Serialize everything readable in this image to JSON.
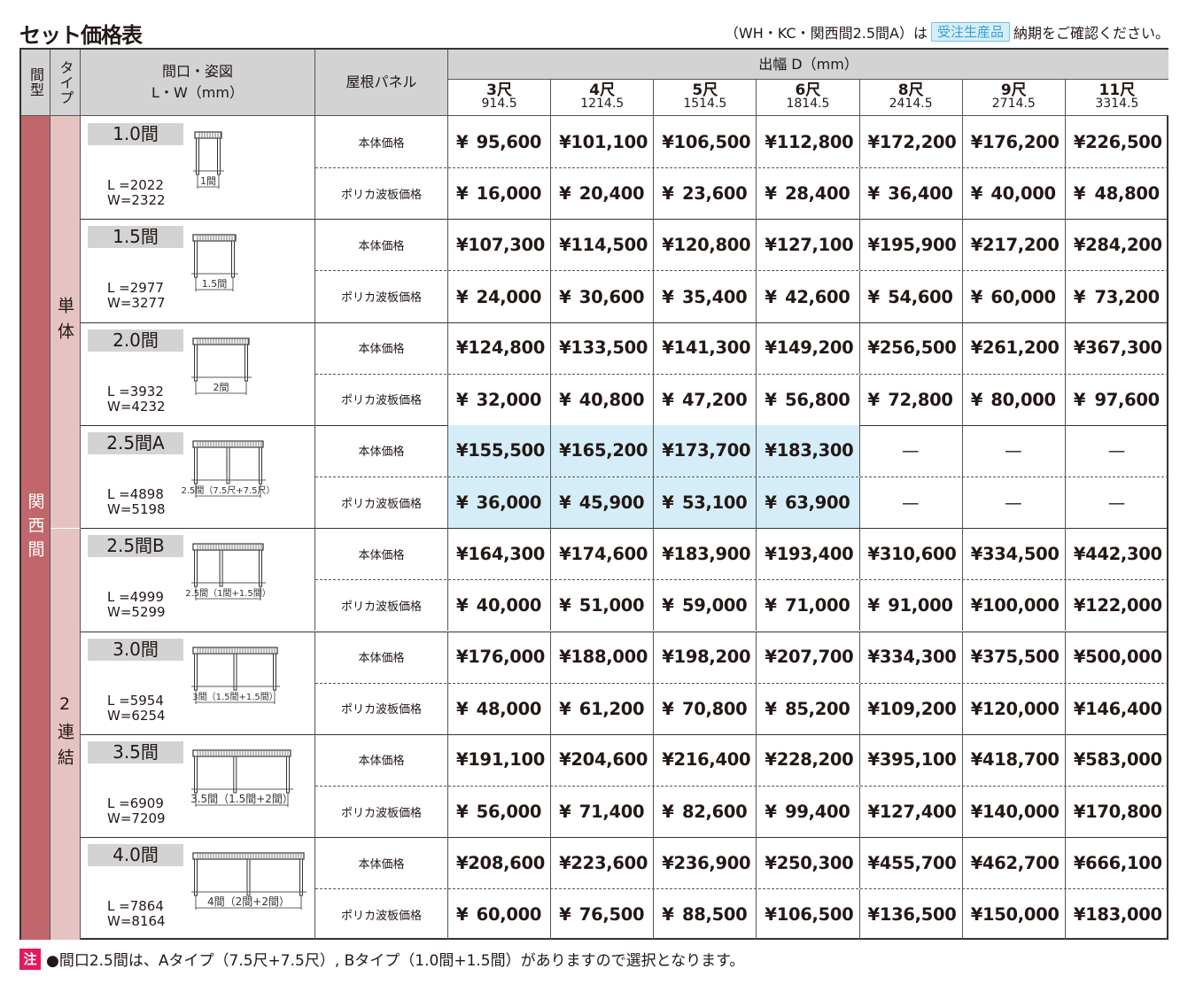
{
  "title": "セット価格表",
  "notice": {
    "prefix": "（WH・KC・関西間2.5間A）は",
    "badge": "受注生産品",
    "suffix": "納期をご確認ください。"
  },
  "colors": {
    "kansai_band": "#c1676b",
    "type_band": "#e6c3c3",
    "header_bg": "#d3d3d4",
    "highlight": "#d4edf9",
    "note_tag": "#e5195f"
  },
  "header": {
    "mawari_type": "間型",
    "type": "タイプ",
    "frontage": "間口・姿図",
    "frontage_unit": "L・W（mm）",
    "roof_panel": "屋根パネル",
    "depth": "出幅 D（mm）",
    "depth_cols": [
      {
        "shaku": "3尺",
        "mm": "914.5"
      },
      {
        "shaku": "4尺",
        "mm": "1214.5"
      },
      {
        "shaku": "5尺",
        "mm": "1514.5"
      },
      {
        "shaku": "6尺",
        "mm": "1814.5"
      },
      {
        "shaku": "8尺",
        "mm": "2414.5"
      },
      {
        "shaku": "9尺",
        "mm": "2714.5"
      },
      {
        "shaku": "11尺",
        "mm": "3314.5"
      }
    ]
  },
  "mawari_label": "関西間",
  "types": [
    {
      "label": "単体"
    },
    {
      "label": "2連結"
    }
  ],
  "currency": "¥",
  "empty_mark": "—",
  "row_labels": {
    "body": "本体価格",
    "panel": "ポリカ波板価格"
  },
  "groups": [
    {
      "size": "1.0間",
      "L": "L =2022",
      "W": "W=2322",
      "diagram": "1間",
      "type": 0,
      "body": [
        "95,600",
        "101,100",
        "106,500",
        "112,800",
        "172,200",
        "176,200",
        "226,500"
      ],
      "panel": [
        "16,000",
        "20,400",
        "23,600",
        "28,400",
        "36,400",
        "40,000",
        "48,800"
      ]
    },
    {
      "size": "1.5間",
      "L": "L =2977",
      "W": "W=3277",
      "diagram": "1.5間",
      "type": 0,
      "body": [
        "107,300",
        "114,500",
        "120,800",
        "127,100",
        "195,900",
        "217,200",
        "284,200"
      ],
      "panel": [
        "24,000",
        "30,600",
        "35,400",
        "42,600",
        "54,600",
        "60,000",
        "73,200"
      ]
    },
    {
      "size": "2.0間",
      "L": "L =3932",
      "W": "W=4232",
      "diagram": "2間",
      "type": 0,
      "body": [
        "124,800",
        "133,500",
        "141,300",
        "149,200",
        "256,500",
        "261,200",
        "367,300"
      ],
      "panel": [
        "32,000",
        "40,800",
        "47,200",
        "56,800",
        "72,800",
        "80,000",
        "97,600"
      ]
    },
    {
      "size": "2.5間A",
      "L": "L =4898",
      "W": "W=5198",
      "diagram": "2.5間（7.5尺+7.5尺）",
      "type": 0,
      "highlight": true,
      "body": [
        "155,500",
        "165,200",
        "173,700",
        "183,300",
        null,
        null,
        null
      ],
      "panel": [
        "36,000",
        "45,900",
        "53,100",
        "63,900",
        null,
        null,
        null
      ]
    },
    {
      "size": "2.5間B",
      "L": "L =4999",
      "W": "W=5299",
      "diagram": "2.5間（1間+1.5間）",
      "type": 1,
      "body": [
        "164,300",
        "174,600",
        "183,900",
        "193,400",
        "310,600",
        "334,500",
        "442,300"
      ],
      "panel": [
        "40,000",
        "51,000",
        "59,000",
        "71,000",
        "91,000",
        "100,000",
        "122,000"
      ]
    },
    {
      "size": "3.0間",
      "L": "L =5954",
      "W": "W=6254",
      "diagram": "3間（1.5間+1.5間）",
      "type": 1,
      "body": [
        "176,000",
        "188,000",
        "198,200",
        "207,700",
        "334,300",
        "375,500",
        "500,000"
      ],
      "panel": [
        "48,000",
        "61,200",
        "70,800",
        "85,200",
        "109,200",
        "120,000",
        "146,400"
      ]
    },
    {
      "size": "3.5間",
      "L": "L =6909",
      "W": "W=7209",
      "diagram": "3.5間（1.5間+2間）",
      "type": 1,
      "body": [
        "191,100",
        "204,600",
        "216,400",
        "228,200",
        "395,100",
        "418,700",
        "583,000"
      ],
      "panel": [
        "56,000",
        "71,400",
        "82,600",
        "99,400",
        "127,400",
        "140,000",
        "170,800"
      ]
    },
    {
      "size": "4.0間",
      "L": "L =7864",
      "W": "W=8164",
      "diagram": "4間（2間+2間）",
      "type": 1,
      "body": [
        "208,600",
        "223,600",
        "236,900",
        "250,300",
        "455,700",
        "462,700",
        "666,100"
      ],
      "panel": [
        "60,000",
        "76,500",
        "88,500",
        "106,500",
        "136,500",
        "150,000",
        "183,000"
      ]
    }
  ],
  "note": {
    "tag": "注",
    "text": "●間口2.5間は、Aタイプ（7.5尺+7.5尺）, Bタイプ（1.0間+1.5間）がありますので選択となります。"
  }
}
